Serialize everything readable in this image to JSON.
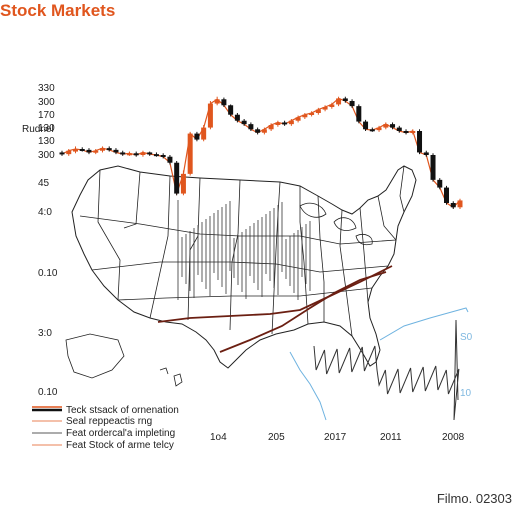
{
  "title": "Stock Markets",
  "credit": "Filmo. 02303",
  "colors": {
    "accent": "#e0561e",
    "candle_down": "#111111",
    "map_route": "#6b1f12",
    "blue_line": "#6fb3e0",
    "map_stroke": "#222222"
  },
  "chart_data": {
    "type": "line",
    "title": "Stock Markets",
    "ylabel": "Rudnel",
    "y_tick_labels": [
      "330",
      "300",
      "170",
      "130",
      "130",
      "300",
      "45",
      "4:0",
      "0.10",
      "3:0",
      "0.10"
    ],
    "x_tick_labels": [
      "1o4",
      "205",
      "2017",
      "2011",
      "2008"
    ],
    "right_tick_labels": [
      "S0",
      "10"
    ],
    "grid": false,
    "legend_position": "bottom-left",
    "legend": [
      {
        "label": "Teck stsack of ornenation",
        "color": "#111111"
      },
      {
        "label": "Seal reppeactis rng",
        "color": "#e0561e"
      },
      {
        "label": "Feat ordercal'a impleting",
        "color": "#222222"
      },
      {
        "label": "Feat Stock of arme telcy",
        "color": "#e0561e"
      }
    ],
    "background": "map of the United States with candlestick and line overlays",
    "series": [
      {
        "name": "Teck stsack of ornenation",
        "kind": "candlestick",
        "x": [
          1,
          2,
          3,
          4,
          5,
          6,
          7,
          8,
          9,
          10,
          11,
          12,
          13,
          14,
          15,
          16,
          17,
          18,
          19,
          20,
          21,
          22,
          23,
          24,
          25,
          26,
          27,
          28,
          29,
          30,
          31,
          32,
          33,
          34,
          35,
          36,
          37,
          38,
          39,
          40,
          41,
          42,
          43,
          44,
          45,
          46,
          47,
          48,
          49,
          50,
          51,
          52,
          53,
          54,
          55,
          56,
          57,
          58,
          59,
          60
        ],
        "open": [
          143,
          141,
          144,
          147,
          146,
          143,
          145,
          148,
          146,
          143,
          141,
          142,
          140,
          143,
          141,
          140,
          138,
          131,
          95,
          118,
          165,
          158,
          172,
          200,
          205,
          198,
          187,
          180,
          176,
          170,
          166,
          170,
          175,
          178,
          176,
          180,
          184,
          187,
          189,
          193,
          196,
          199,
          206,
          203,
          197,
          179,
          170,
          169,
          172,
          176,
          172,
          168,
          166,
          168,
          143,
          140,
          111,
          102,
          84,
          79
        ],
        "close": [
          141,
          145,
          147,
          146,
          143,
          145,
          148,
          146,
          143,
          141,
          142,
          140,
          143,
          141,
          140,
          138,
          131,
          95,
          118,
          165,
          158,
          172,
          200,
          205,
          198,
          187,
          180,
          176,
          170,
          166,
          170,
          175,
          178,
          176,
          180,
          184,
          187,
          189,
          193,
          196,
          199,
          206,
          203,
          197,
          179,
          170,
          169,
          172,
          176,
          172,
          168,
          166,
          168,
          143,
          140,
          111,
          102,
          84,
          79,
          87
        ],
        "high": [
          145,
          147,
          150,
          149,
          148,
          147,
          150,
          150,
          148,
          145,
          144,
          144,
          145,
          144,
          143,
          142,
          140,
          133,
          122,
          167,
          167,
          175,
          203,
          208,
          207,
          199,
          189,
          182,
          178,
          172,
          172,
          177,
          180,
          180,
          182,
          186,
          189,
          191,
          195,
          198,
          201,
          208,
          208,
          205,
          199,
          181,
          172,
          174,
          178,
          178,
          174,
          170,
          170,
          170,
          145,
          142,
          113,
          104,
          86,
          89
        ],
        "low": [
          139,
          139,
          142,
          144,
          141,
          141,
          143,
          144,
          141,
          139,
          139,
          138,
          138,
          139,
          138,
          136,
          129,
          93,
          93,
          116,
          156,
          156,
          170,
          198,
          196,
          185,
          178,
          174,
          168,
          164,
          164,
          168,
          173,
          174,
          174,
          178,
          182,
          185,
          187,
          191,
          194,
          197,
          201,
          195,
          177,
          168,
          167,
          167,
          170,
          170,
          166,
          164,
          164,
          141,
          138,
          109,
          100,
          82,
          77,
          77
        ]
      }
    ]
  },
  "legend_title": ""
}
